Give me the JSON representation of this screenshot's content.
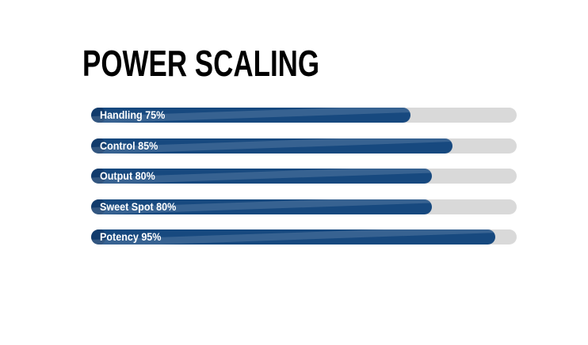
{
  "page": {
    "background_color": "#ffffff"
  },
  "chart_data": {
    "type": "bar",
    "orientation": "horizontal",
    "title": "POWER SCALING",
    "categories": [
      "Handling",
      "Control",
      "Output",
      "Sweet Spot",
      "Potency"
    ],
    "values": [
      75,
      85,
      80,
      80,
      95
    ],
    "unit": "%",
    "xlim": [
      0,
      100
    ],
    "bar_labels": [
      "Handling 75%",
      "Control 85%",
      "Output 80%",
      "Sweet Spot 80%",
      "Potency 95%"
    ],
    "legend": false,
    "grid": false,
    "axes_visible": false,
    "colors": {
      "bar_fill": "#17497f",
      "bar_sheen_highlight": "#2e5c91",
      "bar_left_cap_shade": "#0d3a68",
      "track": "#d9d9d9",
      "label_text": "#ffffff",
      "title_text": "#000000"
    }
  }
}
